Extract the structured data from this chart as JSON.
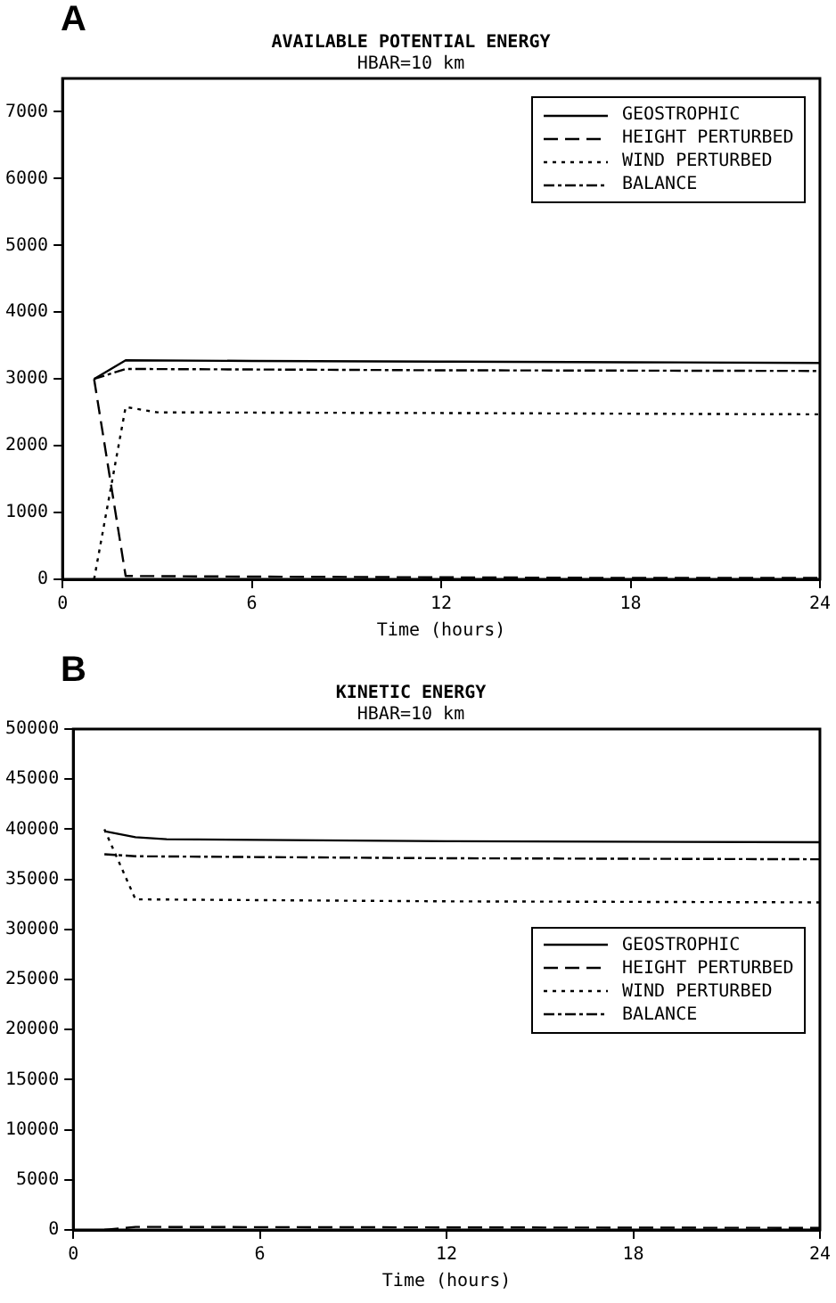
{
  "chart_data": [
    {
      "type": "line",
      "title": "AVAILABLE POTENTIAL ENERGY",
      "subtitle": "HBAR=10 km",
      "xlabel": "Time (hours)",
      "annotations": [
        "A"
      ],
      "xlim": [
        0,
        24
      ],
      "xticks": [
        0,
        6,
        12,
        18,
        24
      ],
      "ylim": [
        0,
        7500
      ],
      "yticks": [
        0,
        1000,
        2000,
        3000,
        4000,
        5000,
        6000,
        7000
      ],
      "grid": false,
      "legend": "top right",
      "marker": "none",
      "series": [
        {
          "name": "GEOSTROPHIC",
          "color": "#000000",
          "line_style": "solid",
          "x": [
            1,
            2,
            6,
            12,
            18,
            24
          ],
          "values": [
            3000,
            3280,
            3270,
            3260,
            3250,
            3240
          ]
        },
        {
          "name": "HEIGHT PERTURBED",
          "color": "#000000",
          "line_style": "dashed",
          "x": [
            1,
            2,
            6,
            12,
            18,
            24
          ],
          "values": [
            3000,
            50,
            40,
            30,
            20,
            20
          ]
        },
        {
          "name": "WIND PERTURBED",
          "color": "#000000",
          "line_style": "dotted",
          "x": [
            1,
            2,
            3,
            12,
            24
          ],
          "values": [
            0,
            2580,
            2500,
            2490,
            2470
          ]
        },
        {
          "name": "BALANCE",
          "color": "#000000",
          "line_style": "dashdot",
          "x": [
            1,
            2,
            12,
            24
          ],
          "values": [
            3000,
            3150,
            3130,
            3120
          ]
        }
      ]
    },
    {
      "type": "line",
      "title": "KINETIC ENERGY",
      "subtitle": "HBAR=10 km",
      "xlabel": "Time (hours)",
      "annotations": [
        "B"
      ],
      "xlim": [
        0,
        24
      ],
      "xticks": [
        0,
        6,
        12,
        18,
        24
      ],
      "ylim": [
        0,
        50000
      ],
      "yticks": [
        0,
        5000,
        10000,
        15000,
        20000,
        25000,
        30000,
        35000,
        40000,
        45000,
        50000
      ],
      "grid": false,
      "legend": "right",
      "marker": "none",
      "series": [
        {
          "name": "GEOSTROPHIC",
          "color": "#000000",
          "line_style": "solid",
          "x": [
            1,
            2,
            3,
            12,
            24
          ],
          "values": [
            39800,
            39200,
            39000,
            38800,
            38700
          ]
        },
        {
          "name": "HEIGHT PERTURBED",
          "color": "#000000",
          "line_style": "dashed",
          "x": [
            1,
            2,
            12,
            24
          ],
          "values": [
            0,
            300,
            250,
            200
          ]
        },
        {
          "name": "WIND PERTURBED",
          "color": "#000000",
          "line_style": "dotted",
          "x": [
            1,
            2,
            12,
            24
          ],
          "values": [
            40000,
            33000,
            32800,
            32700
          ]
        },
        {
          "name": "BALANCE",
          "color": "#000000",
          "line_style": "dashdot",
          "x": [
            1,
            2,
            12,
            24
          ],
          "values": [
            37500,
            37300,
            37100,
            37000
          ]
        }
      ]
    }
  ]
}
